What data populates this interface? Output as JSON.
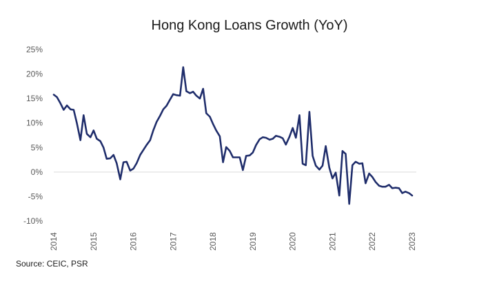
{
  "chart_data": {
    "type": "line",
    "title": "Hong Kong Loans Growth (YoY)",
    "xlabel": "",
    "ylabel": "",
    "ylim": [
      -10,
      25
    ],
    "y_ticks": [
      25,
      20,
      15,
      10,
      5,
      0,
      -5,
      -10
    ],
    "y_tick_labels": [
      "25%",
      "20%",
      "15%",
      "10%",
      "5%",
      "0%",
      "-5%",
      "-10%"
    ],
    "x_ticks": [
      2014,
      2015,
      2016,
      2017,
      2018,
      2019,
      2020,
      2021,
      2022,
      2023
    ],
    "x_tick_labels": [
      "2014",
      "2015",
      "2016",
      "2017",
      "2018",
      "2019",
      "2020",
      "2021",
      "2022",
      "2023"
    ],
    "xlim": [
      2014,
      2023
    ],
    "grid": false,
    "line_color": "#1f2d6b",
    "series": [
      {
        "name": "",
        "x": [
          2014.0,
          2014.08,
          2014.17,
          2014.25,
          2014.33,
          2014.42,
          2014.5,
          2014.58,
          2014.67,
          2014.75,
          2014.83,
          2014.92,
          2015.0,
          2015.08,
          2015.17,
          2015.25,
          2015.33,
          2015.42,
          2015.5,
          2015.58,
          2015.67,
          2015.75,
          2015.83,
          2015.92,
          2016.0,
          2016.08,
          2016.17,
          2016.25,
          2016.33,
          2016.42,
          2016.5,
          2016.58,
          2016.67,
          2016.75,
          2016.83,
          2016.92,
          2017.0,
          2017.08,
          2017.17,
          2017.25,
          2017.33,
          2017.42,
          2017.5,
          2017.58,
          2017.67,
          2017.75,
          2017.83,
          2017.92,
          2018.0,
          2018.08,
          2018.17,
          2018.25,
          2018.33,
          2018.42,
          2018.5,
          2018.58,
          2018.67,
          2018.75,
          2018.83,
          2018.92,
          2019.0,
          2019.08,
          2019.17,
          2019.25,
          2019.33,
          2019.42,
          2019.5,
          2019.58,
          2019.67,
          2019.75,
          2019.83,
          2019.92,
          2020.0,
          2020.08,
          2020.17,
          2020.25,
          2020.33,
          2020.42,
          2020.5,
          2020.58,
          2020.67,
          2020.75,
          2020.83,
          2020.92,
          2021.0,
          2021.08,
          2021.17,
          2021.25,
          2021.33,
          2021.42,
          2021.5,
          2021.58,
          2021.67,
          2021.75,
          2021.83,
          2021.92,
          2022.0,
          2022.08,
          2022.17,
          2022.25,
          2022.33,
          2022.42,
          2022.5,
          2022.58,
          2022.67,
          2022.75,
          2022.83,
          2022.92,
          2023.0
        ],
        "values": [
          15.8,
          15.3,
          14.0,
          12.7,
          13.6,
          12.8,
          12.7,
          10.0,
          6.5,
          11.6,
          7.8,
          7.1,
          8.5,
          6.8,
          6.3,
          5.0,
          2.7,
          2.8,
          3.5,
          1.8,
          -1.5,
          2.0,
          2.1,
          0.3,
          0.7,
          1.8,
          3.5,
          4.5,
          5.5,
          6.5,
          8.5,
          10.2,
          11.5,
          12.8,
          13.5,
          14.8,
          15.9,
          15.7,
          15.6,
          21.4,
          16.5,
          16.1,
          16.4,
          15.6,
          15.0,
          17.0,
          12.0,
          11.3,
          9.8,
          8.5,
          7.3,
          2.0,
          5.1,
          4.3,
          3.0,
          3.0,
          3.0,
          0.4,
          3.3,
          3.4,
          4.0,
          5.5,
          6.7,
          7.1,
          7.0,
          6.6,
          6.8,
          7.4,
          7.2,
          6.9,
          5.6,
          7.2,
          9.0,
          7.0,
          11.6,
          1.7,
          1.4,
          12.3,
          3.3,
          1.3,
          0.5,
          1.3,
          5.3,
          0.9,
          -1.3,
          -0.1,
          -4.8,
          4.3,
          3.7,
          -6.5,
          1.4,
          2.1,
          1.7,
          1.8,
          -2.3,
          -0.3,
          -1.0,
          -2.0,
          -2.8,
          -3.0,
          -3.0,
          -2.6,
          -3.3,
          -3.2,
          -3.3,
          -4.3,
          -4.0,
          -4.3,
          -4.8
        ]
      }
    ]
  },
  "source_text": "Source: CEIC, PSR"
}
